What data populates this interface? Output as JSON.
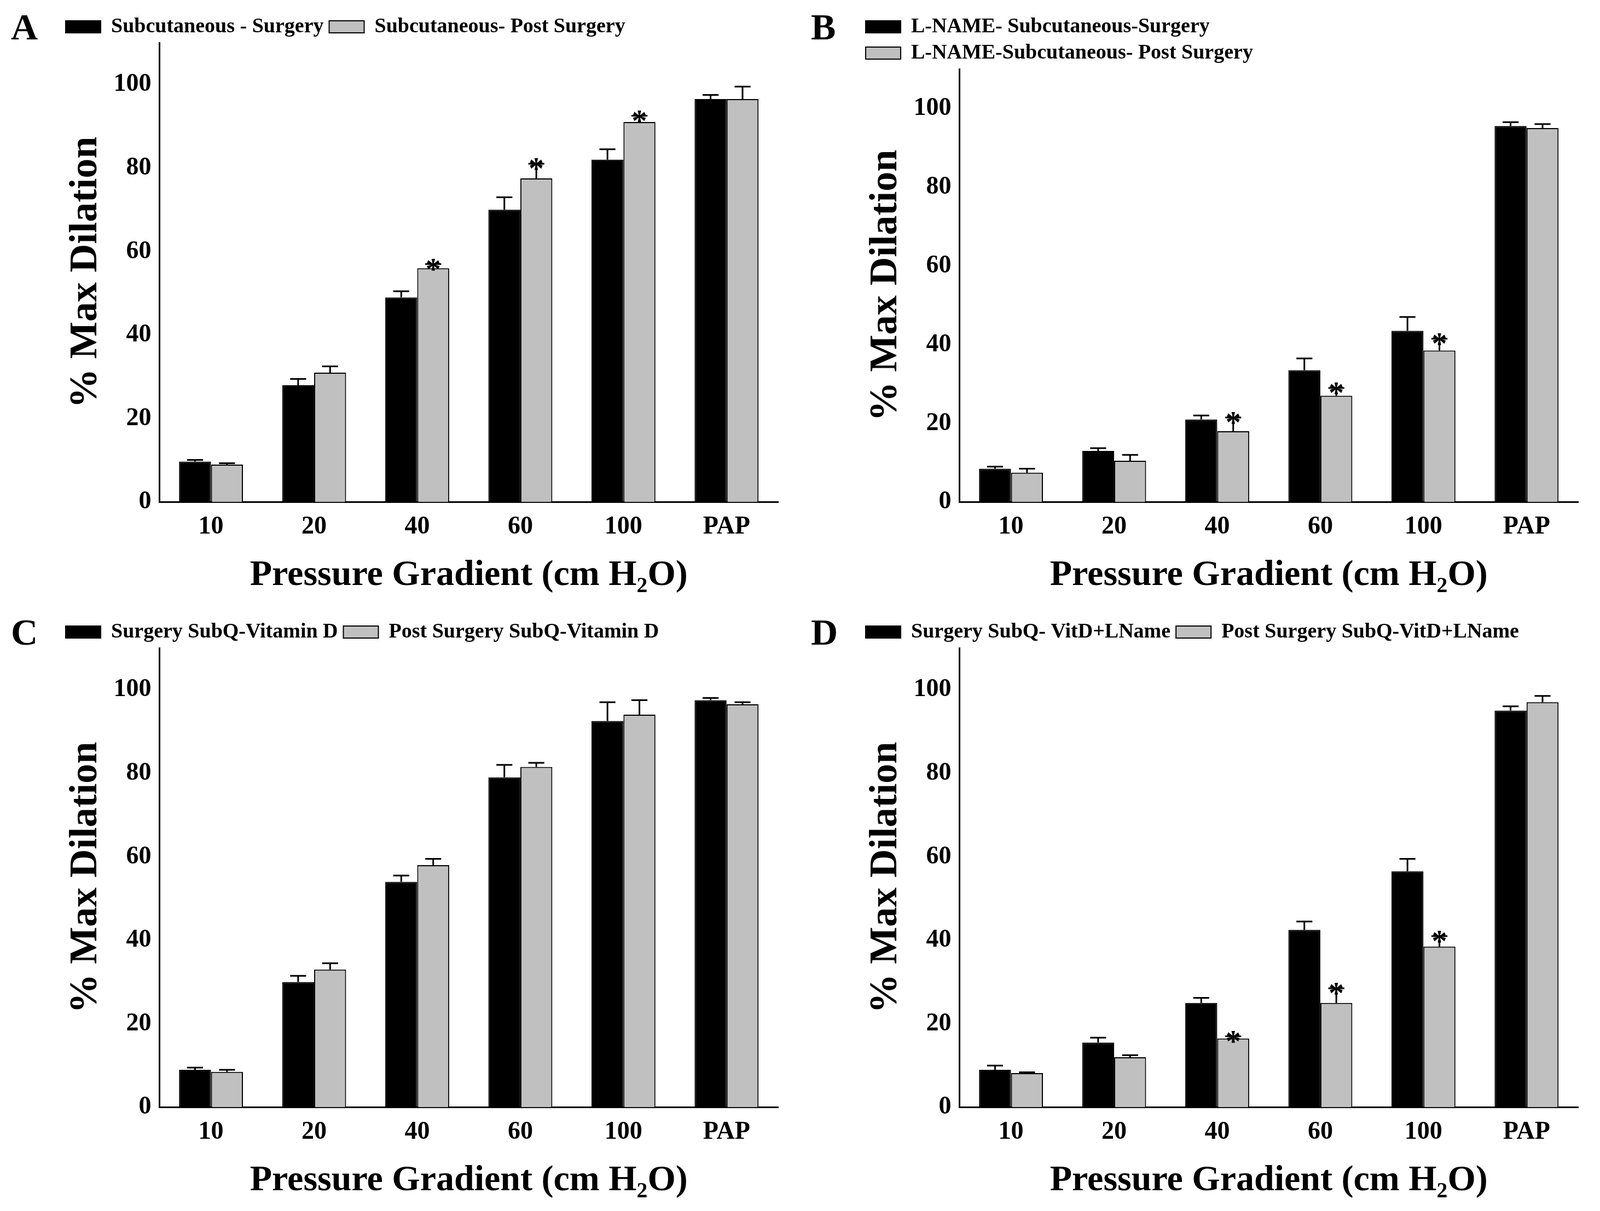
{
  "chart_data": [
    {
      "type": "bar",
      "title": "A",
      "x_label": "Pressure Gradient (cm H₂O)",
      "y_label": "% Max Dilation",
      "categories": [
        "10",
        "20",
        "40",
        "60",
        "100",
        "PAP"
      ],
      "series": [
        {
          "name": "Subcutaneous - Surgery",
          "color": "#000000",
          "values": [
            9.7,
            28,
            49,
            70,
            82,
            96.5
          ],
          "errors": [
            0.4,
            1.5,
            1.5,
            3,
            2.5,
            1
          ]
        },
        {
          "name": "Subcutaneous- Post Surgery",
          "color": "#c0c0c0",
          "values": [
            9,
            31,
            56,
            77.5,
            91,
            96.5
          ],
          "errors": [
            0.3,
            1.5,
            1,
            3.5,
            1.5,
            3
          ]
        }
      ],
      "annotations": [
        {
          "category": "40",
          "series": "Subcutaneous- Post Surgery",
          "text": "*"
        },
        {
          "category": "60",
          "series": "Subcutaneous- Post Surgery",
          "text": "*"
        },
        {
          "category": "100",
          "series": "Subcutaneous- Post Surgery",
          "text": "*"
        }
      ],
      "ylim": [
        0,
        110
      ],
      "yticks": [
        0,
        20,
        40,
        60,
        80,
        100
      ],
      "grid": false,
      "legend": "upper left"
    },
    {
      "type": "bar",
      "title": "B",
      "x_label": "Pressure Gradient (cm H₂O)",
      "y_label": "% Max Dilation",
      "categories": [
        "10",
        "20",
        "40",
        "60",
        "100",
        "PAP"
      ],
      "series": [
        {
          "name": "L-NAME- Subcutaneous-Surgery",
          "color": "#000000",
          "values": [
            8.5,
            13,
            21,
            33.5,
            43.5,
            95.5
          ],
          "errors": [
            0.5,
            0.7,
            1,
            3,
            3.5,
            1
          ]
        },
        {
          "name": "L-NAME-Subcutaneous- Post Surgery",
          "color": "#c0c0c0",
          "values": [
            7.5,
            10.5,
            18,
            27,
            38.5,
            95
          ],
          "errors": [
            1,
            1.5,
            3.5,
            2,
            3,
            1
          ]
        }
      ],
      "annotations": [
        {
          "category": "40",
          "series": "L-NAME-Subcutaneous- Post Surgery",
          "text": "*"
        },
        {
          "category": "60",
          "series": "L-NAME-Subcutaneous- Post Surgery",
          "text": "*"
        },
        {
          "category": "100",
          "series": "L-NAME-Subcutaneous- Post Surgery",
          "text": "*"
        }
      ],
      "ylim": [
        0,
        110
      ],
      "yticks": [
        0,
        20,
        40,
        60,
        80,
        100
      ],
      "grid": false,
      "legend": "upper left"
    },
    {
      "type": "bar",
      "title": "C",
      "x_label": "Pressure Gradient (cm H₂O)",
      "y_label": "% Max Dilation",
      "categories": [
        "10",
        "20",
        "40",
        "60",
        "100",
        "PAP"
      ],
      "series": [
        {
          "name": "Surgery SubQ-Vitamin D",
          "color": "#000000",
          "values": [
            9,
            30,
            54,
            79,
            92.5,
            97.5
          ],
          "errors": [
            0.5,
            1.5,
            1.5,
            3,
            4.5,
            0.5
          ]
        },
        {
          "name": "Post Surgery SubQ-Vitamin D",
          "color": "#c0c0c0",
          "values": [
            8.5,
            33,
            58,
            81.5,
            94,
            96.5
          ],
          "errors": [
            0.5,
            1.5,
            1.5,
            1,
            3.5,
            0.5
          ]
        }
      ],
      "ylim": [
        0,
        110
      ],
      "yticks": [
        0,
        20,
        40,
        60,
        80,
        100
      ],
      "grid": false,
      "legend": "upper left"
    },
    {
      "type": "bar",
      "title": "D",
      "x_label": "Pressure Gradient (cm H₂O)",
      "y_label": "% Max Dilation",
      "categories": [
        "10",
        "20",
        "40",
        "60",
        "100",
        "PAP"
      ],
      "series": [
        {
          "name": "Surgery SubQ- VitD+LName",
          "color": "#000000",
          "values": [
            9,
            15.5,
            25,
            42.5,
            56.5,
            95
          ],
          "errors": [
            1,
            1.2,
            1.2,
            2,
            3,
            1
          ]
        },
        {
          "name": "Post Surgery SubQ-VitD+LName",
          "color": "#c0c0c0",
          "values": [
            8.2,
            12,
            16.5,
            25,
            38.5,
            97
          ],
          "errors": [
            0.2,
            0.5,
            0.5,
            3.5,
            2.5,
            1.5
          ]
        }
      ],
      "annotations": [
        {
          "category": "40",
          "series": "Post Surgery SubQ-VitD+LName",
          "text": "*"
        },
        {
          "category": "60",
          "series": "Post Surgery SubQ-VitD+LName",
          "text": "*"
        },
        {
          "category": "100",
          "series": "Post Surgery SubQ-VitD+LName",
          "text": "*"
        }
      ],
      "ylim": [
        0,
        110
      ],
      "yticks": [
        0,
        20,
        40,
        60,
        80,
        100
      ],
      "grid": false,
      "legend": "upper left"
    }
  ]
}
